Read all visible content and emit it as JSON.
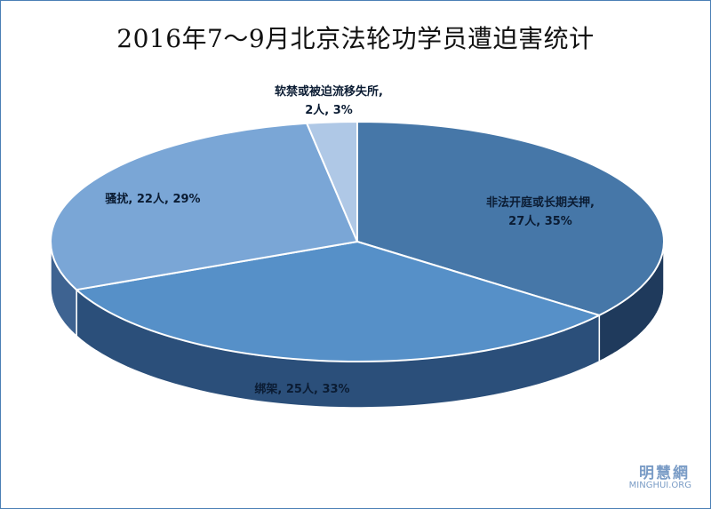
{
  "chart_data": {
    "type": "pie",
    "title": "2016年7～9月北京法轮功学员遭迫害统计",
    "slices": [
      {
        "label": "非法开庭或长期关押",
        "count": "27人",
        "percent": "35%",
        "value": 27,
        "color_top": "#4677a8",
        "color_side": "#1f3a5c"
      },
      {
        "label": "绑架",
        "count": "25人",
        "percent": "33%",
        "value": 25,
        "color_top": "#5690c8",
        "color_side": "#2b4f7a"
      },
      {
        "label": "骚扰",
        "count": "22人",
        "percent": "29%",
        "value": 22,
        "color_top": "#7aa6d6",
        "color_side": "#3e6391"
      },
      {
        "label": "软禁或被迫流移失所",
        "count": "2人",
        "percent": "3%",
        "value": 2,
        "color_top": "#afc8e6",
        "color_side": "#6e8fb8"
      }
    ],
    "labels": {
      "s0_line1": "非法开庭或长期关押,",
      "s0_line2": "27人, 35%",
      "s1_line1": "绑架, 25人, 33%",
      "s2_line1": "骚扰, 22人, 29%",
      "s3_line1": "软禁或被迫流移失所,",
      "s3_line2": "2人, 3%"
    }
  },
  "watermark": {
    "cn": "明慧網",
    "en": "MINGHUI.ORG"
  }
}
